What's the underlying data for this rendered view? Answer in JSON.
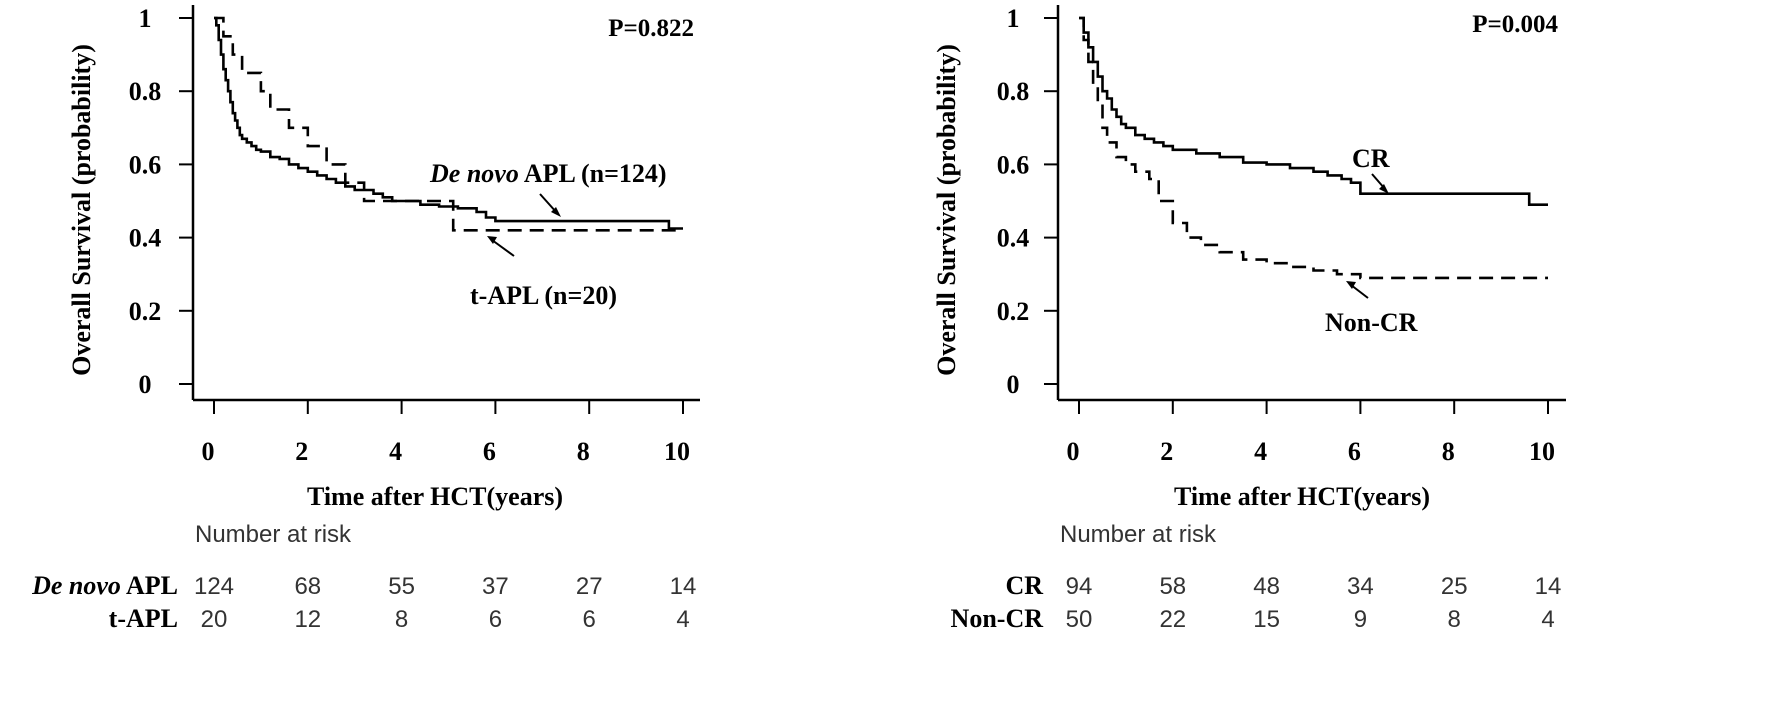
{
  "chart_data": [
    {
      "type": "line",
      "panel": "left",
      "ylabel": "Overall Survival   (probability)",
      "xlabel": "Time after HCT(years)",
      "xlim": [
        0,
        10
      ],
      "ylim": [
        0,
        1
      ],
      "x_ticks": [
        0,
        2,
        4,
        6,
        8,
        10
      ],
      "y_ticks": [
        0,
        0.2,
        0.4,
        0.6,
        0.8,
        1
      ],
      "y_tick_labels": [
        "0",
        "0.2",
        "0.4",
        "0.6",
        "0.8",
        "1"
      ],
      "pvalue": "P=0.822",
      "series": [
        {
          "name": "De novo APL (n=124)",
          "name_italic": "De novo",
          "name_rest": " APL (n=124)",
          "style": "solid",
          "x": [
            0,
            0.05,
            0.1,
            0.15,
            0.2,
            0.25,
            0.3,
            0.35,
            0.4,
            0.45,
            0.5,
            0.55,
            0.6,
            0.7,
            0.8,
            0.9,
            1.0,
            1.2,
            1.4,
            1.6,
            1.8,
            2.0,
            2.2,
            2.4,
            2.6,
            2.8,
            3.0,
            3.4,
            3.6,
            3.8,
            4.0,
            4.4,
            4.8,
            5.2,
            5.6,
            5.8,
            6.0,
            7.0,
            8.0,
            9.0,
            9.7,
            10.0
          ],
          "y": [
            1,
            0.98,
            0.94,
            0.9,
            0.86,
            0.83,
            0.8,
            0.77,
            0.74,
            0.72,
            0.7,
            0.68,
            0.67,
            0.66,
            0.65,
            0.64,
            0.635,
            0.62,
            0.615,
            0.6,
            0.59,
            0.58,
            0.57,
            0.56,
            0.55,
            0.54,
            0.53,
            0.52,
            0.51,
            0.5,
            0.5,
            0.49,
            0.485,
            0.48,
            0.47,
            0.455,
            0.445,
            0.445,
            0.445,
            0.445,
            0.425,
            0.425
          ]
        },
        {
          "name": "t-APL (n=20)",
          "style": "dashed",
          "x": [
            0,
            0.2,
            0.4,
            0.6,
            1.0,
            1.2,
            1.6,
            2.0,
            2.4,
            2.8,
            3.2,
            3.8,
            4.4,
            5.1,
            5.5,
            10.0
          ],
          "y": [
            1,
            0.95,
            0.9,
            0.85,
            0.8,
            0.75,
            0.7,
            0.65,
            0.6,
            0.55,
            0.5,
            0.5,
            0.5,
            0.42,
            0.42,
            0.42
          ]
        }
      ],
      "risk_table": {
        "title": "Number at risk",
        "rows": [
          {
            "label_italic": "De novo",
            "label_rest": " APL",
            "values": [
              "124",
              "68",
              "55",
              "37",
              "27",
              "14"
            ]
          },
          {
            "label_italic": "",
            "label_rest": "t-APL",
            "values": [
              "20",
              "12",
              "8",
              "6",
              "6",
              "4"
            ]
          }
        ]
      }
    },
    {
      "type": "line",
      "panel": "right",
      "ylabel": "Overall Survival   (probability)",
      "xlabel": "Time after HCT(years)",
      "xlim": [
        0,
        10
      ],
      "ylim": [
        0,
        1
      ],
      "x_ticks": [
        0,
        2,
        4,
        6,
        8,
        10
      ],
      "y_ticks": [
        0,
        0.2,
        0.4,
        0.6,
        0.8,
        1
      ],
      "y_tick_labels": [
        "0",
        "0.2",
        "0.4",
        "0.6",
        "0.8",
        "1"
      ],
      "pvalue": "P=0.004",
      "series": [
        {
          "name": "CR",
          "style": "solid",
          "x": [
            0,
            0.1,
            0.2,
            0.3,
            0.4,
            0.5,
            0.6,
            0.7,
            0.8,
            0.9,
            1.0,
            1.2,
            1.4,
            1.6,
            1.8,
            2.0,
            2.5,
            3.0,
            3.5,
            4.0,
            4.5,
            5.0,
            5.3,
            5.6,
            5.8,
            6.0,
            7.0,
            8.0,
            9.0,
            9.6,
            10.0
          ],
          "y": [
            1,
            0.96,
            0.92,
            0.88,
            0.84,
            0.8,
            0.78,
            0.75,
            0.73,
            0.71,
            0.7,
            0.68,
            0.67,
            0.66,
            0.65,
            0.64,
            0.63,
            0.62,
            0.605,
            0.6,
            0.59,
            0.58,
            0.57,
            0.56,
            0.55,
            0.52,
            0.52,
            0.52,
            0.52,
            0.49,
            0.49
          ]
        },
        {
          "name": "Non-CR",
          "style": "dashed",
          "x": [
            0,
            0.1,
            0.2,
            0.3,
            0.4,
            0.5,
            0.6,
            0.8,
            1.0,
            1.2,
            1.5,
            1.7,
            2.0,
            2.3,
            2.6,
            3.0,
            3.5,
            4.0,
            4.5,
            5.0,
            5.5,
            6.0,
            7.0,
            8.0,
            9.0,
            10.0
          ],
          "y": [
            1,
            0.94,
            0.88,
            0.82,
            0.76,
            0.7,
            0.66,
            0.62,
            0.6,
            0.58,
            0.56,
            0.5,
            0.44,
            0.4,
            0.38,
            0.36,
            0.34,
            0.33,
            0.32,
            0.31,
            0.3,
            0.29,
            0.29,
            0.29,
            0.29,
            0.29
          ]
        }
      ],
      "risk_table": {
        "title": "Number at risk",
        "rows": [
          {
            "label_italic": "",
            "label_rest": "CR",
            "values": [
              "94",
              "58",
              "48",
              "34",
              "25",
              "14"
            ]
          },
          {
            "label_italic": "",
            "label_rest": "Non-CR",
            "values": [
              "50",
              "22",
              "15",
              "9",
              "8",
              "4"
            ]
          }
        ]
      }
    }
  ]
}
